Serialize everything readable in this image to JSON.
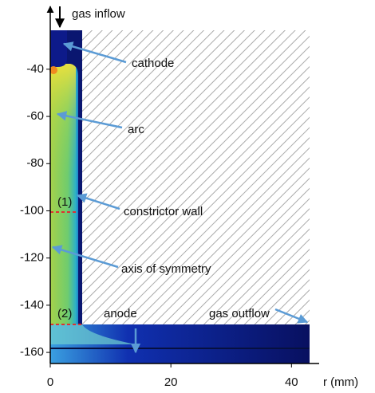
{
  "chart_data": {
    "type": "field",
    "xlabel": "r (mm)",
    "xlim": [
      0,
      43
    ],
    "xticks": [
      0,
      20,
      40
    ],
    "ylim": [
      -23.5,
      -164.7
    ],
    "yticks": [
      -40,
      -60,
      -80,
      -100,
      -120,
      -140,
      -160
    ],
    "grid": false,
    "annotations": {
      "inflow": "gas inflow",
      "cathode": "cathode",
      "arc": "arc",
      "wall": "constrictor wall",
      "p1": "(1)",
      "axis": "axis of symmetry",
      "p2": "(2)",
      "anode": "anode",
      "outflow": "gas outflow"
    }
  }
}
